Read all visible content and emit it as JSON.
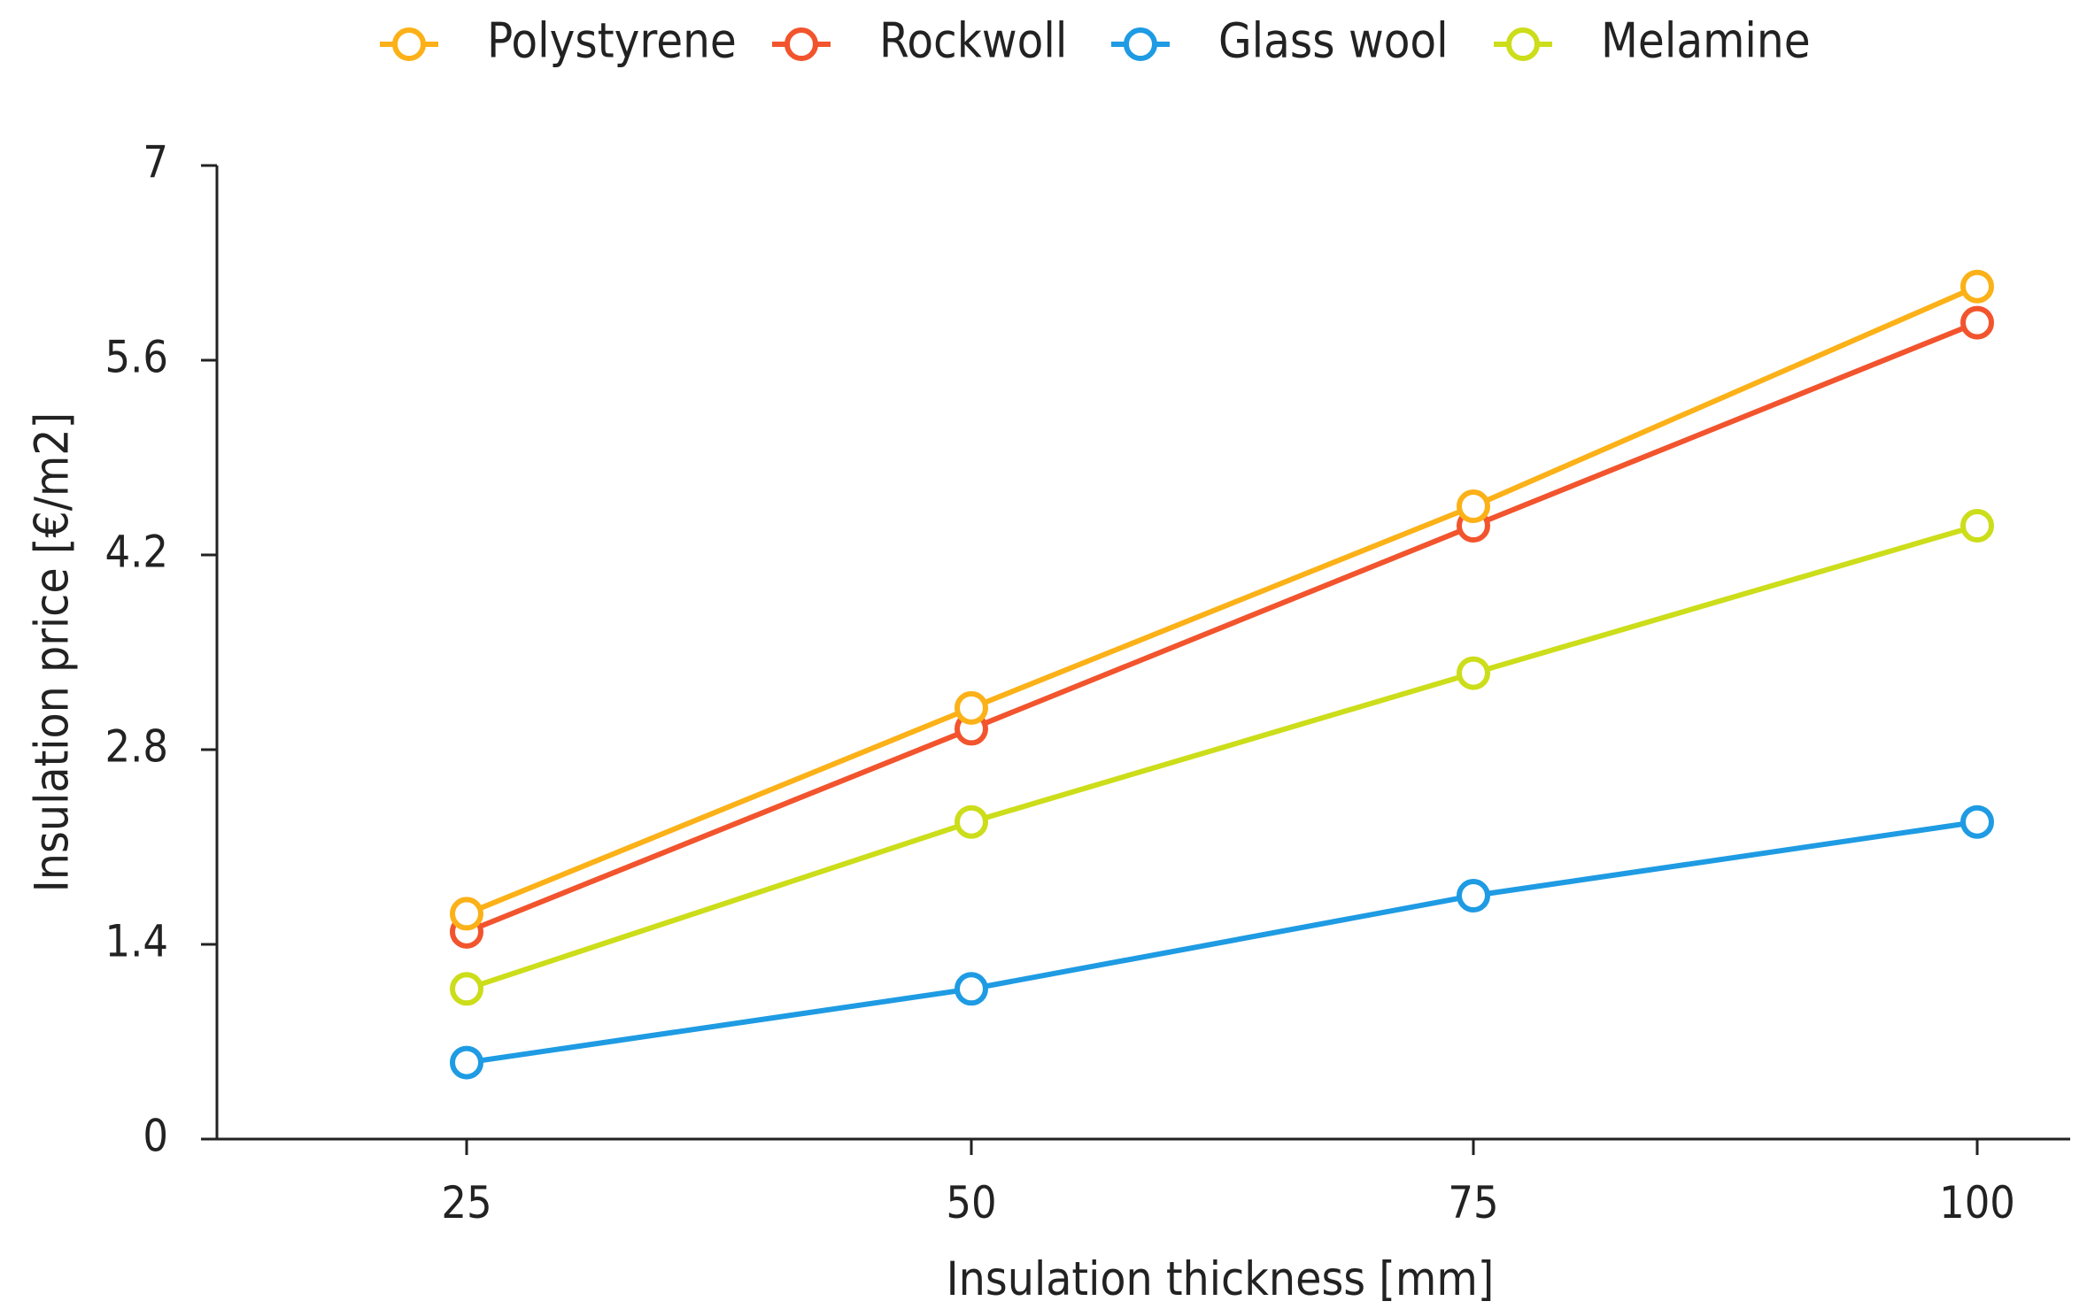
{
  "chart_data": {
    "type": "line",
    "x": [
      25,
      50,
      75,
      100
    ],
    "xlabel": "Insulation thickness [mm]",
    "ylabel": "Insulation price [€/m2]",
    "ylim": [
      0,
      7
    ],
    "yticks": [
      "0",
      "1.4",
      "2.8",
      "4.2",
      "5.6",
      "7"
    ],
    "ytick_values": [
      0,
      1.4,
      2.8,
      4.2,
      5.6,
      7
    ],
    "xticks": [
      "25",
      "50",
      "75",
      "100"
    ],
    "grid": false,
    "legend_position": "top",
    "series": [
      {
        "name": "Polystyrene",
        "color": "#FBB117",
        "values": [
          1.62,
          3.1,
          4.55,
          6.13
        ]
      },
      {
        "name": "Rockwoll",
        "color": "#F2542D",
        "values": [
          1.49,
          2.95,
          4.41,
          5.87
        ]
      },
      {
        "name": "Glass wool",
        "color": "#1E9BE3",
        "values": [
          0.55,
          1.08,
          1.75,
          2.28
        ]
      },
      {
        "name": "Melamine",
        "color": "#CCDD1A",
        "values": [
          1.08,
          2.28,
          3.35,
          4.41
        ]
      }
    ]
  }
}
